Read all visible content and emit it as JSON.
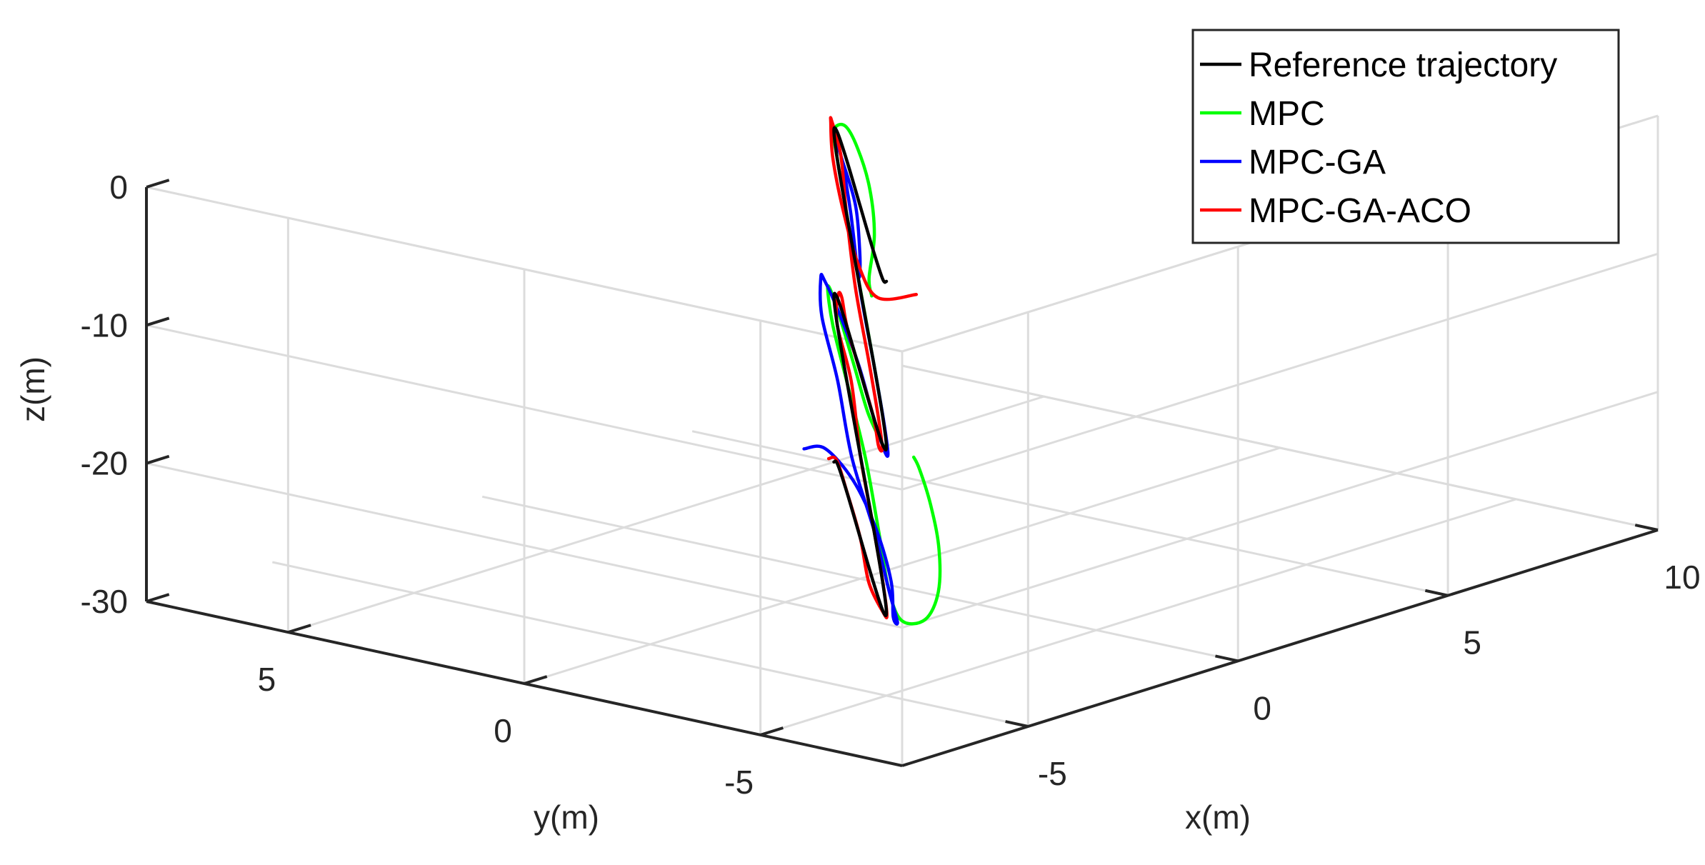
{
  "chart_data": {
    "type": "line",
    "projection": "3d",
    "grid": true,
    "legend_position": "top-right",
    "xlabel": "x(m)",
    "ylabel": "y(m)",
    "zlabel": "z(m)",
    "xlim": [
      -8,
      10
    ],
    "ylim": [
      -8,
      8
    ],
    "zlim": [
      -30,
      0
    ],
    "xticks": [
      "-5",
      "0",
      "5",
      "10"
    ],
    "yticks": [
      "5",
      "0",
      "-5"
    ],
    "zticks": [
      "0",
      "-10",
      "-20",
      "-30"
    ],
    "series": [
      {
        "name": "Reference trajectory",
        "color": "#000000",
        "x": [
          5.0,
          4.33,
          2.5,
          0.0,
          -2.5,
          -4.33,
          -5.0,
          -4.33,
          -2.5,
          0.0,
          2.5,
          4.33,
          5.0,
          4.33,
          2.5,
          0.0,
          -2.5,
          -4.33,
          -5.0,
          -4.33,
          -2.5,
          0.0,
          2.5,
          4.33,
          5.0,
          4.33,
          2.5,
          0.0,
          -2.5,
          -4.33,
          -5.0
        ],
        "y": [
          5.0,
          4.33,
          2.5,
          0.0,
          -2.5,
          -4.33,
          -5.0,
          -4.33,
          -2.5,
          0.0,
          2.5,
          4.33,
          5.0,
          4.33,
          2.5,
          0.0,
          -2.5,
          -4.33,
          -5.0,
          -4.33,
          -2.5,
          0.0,
          2.5,
          4.33,
          5.0,
          4.33,
          2.5,
          0.0,
          -2.5,
          -4.33,
          -5.0
        ],
        "z": [
          -30.0,
          -29.0,
          -28.0,
          -27.0,
          -26.0,
          -25.0,
          -24.0,
          -23.0,
          -22.0,
          -21.0,
          -20.0,
          -19.0,
          -18.0,
          -17.0,
          -16.0,
          -15.0,
          -14.0,
          -13.0,
          -12.0,
          -11.0,
          -10.0,
          -9.0,
          -8.0,
          -7.0,
          -6.0,
          -5.0,
          -4.0,
          -3.0,
          -2.0,
          -1.0,
          0.0
        ]
      },
      {
        "name": "MPC",
        "color": "#00ff00",
        "x": [
          6.0,
          4.9,
          2.8,
          0.3,
          -2.3,
          -4.3,
          -5.2,
          -4.5,
          -2.6,
          -0.1,
          2.4,
          4.3,
          5.3,
          4.5,
          2.6,
          0.1,
          -2.4,
          -4.3,
          -5.1,
          -4.4,
          -2.6,
          -0.1,
          2.4,
          4.3,
          5.0,
          4.7,
          3.2,
          0.9,
          -1.8,
          -4.4,
          -5.8
        ],
        "y": [
          4.2,
          3.1,
          1.0,
          -1.4,
          -3.7,
          -5.2,
          -5.5,
          -4.6,
          -2.7,
          -0.2,
          2.4,
          4.4,
          5.4,
          4.6,
          2.7,
          0.2,
          -2.3,
          -4.3,
          -5.1,
          -4.4,
          -2.6,
          -0.1,
          2.4,
          4.3,
          5.0,
          4.5,
          2.9,
          0.6,
          -1.9,
          -4.1,
          -5.4
        ],
        "z": [
          -30.0,
          -29.0,
          -28.0,
          -27.0,
          -26.0,
          -25.0,
          -24.0,
          -23.0,
          -22.0,
          -21.0,
          -20.0,
          -19.0,
          -18.0,
          -17.0,
          -16.0,
          -15.0,
          -14.0,
          -13.0,
          -12.0,
          -11.0,
          -10.0,
          -9.0,
          -8.0,
          -7.0,
          -6.0,
          -5.0,
          -4.0,
          -3.0,
          -2.0,
          -1.0,
          0.0
        ]
      },
      {
        "name": "MPC-GA",
        "color": "#0000ff",
        "x": [
          5.3,
          4.9,
          3.1,
          0.5,
          -2.3,
          -4.5,
          -5.3,
          -4.6,
          -2.7,
          -0.2,
          2.5,
          4.6,
          5.7,
          5.0,
          3.0,
          0.3,
          -2.5,
          -4.5,
          -5.3,
          -4.5,
          -2.5,
          0.1,
          2.7,
          4.5,
          5.1,
          4.4,
          2.5,
          0.0,
          -2.6,
          -4.4,
          -4.9
        ],
        "y": [
          5.9,
          5.1,
          2.9,
          0.1,
          -2.7,
          -4.7,
          -5.5,
          -4.7,
          -2.7,
          0.0,
          2.7,
          4.9,
          5.9,
          5.2,
          3.1,
          0.3,
          -2.5,
          -4.5,
          -5.3,
          -4.5,
          -2.5,
          0.1,
          2.6,
          4.4,
          5.1,
          4.5,
          2.6,
          0.1,
          -2.3,
          -3.9,
          -4.3
        ],
        "z": [
          -30.0,
          -29.0,
          -28.0,
          -27.0,
          -26.0,
          -25.0,
          -24.0,
          -23.0,
          -22.0,
          -21.0,
          -20.0,
          -19.0,
          -18.0,
          -17.0,
          -16.0,
          -15.0,
          -14.0,
          -13.0,
          -12.0,
          -11.0,
          -10.0,
          -9.0,
          -8.0,
          -7.0,
          -6.0,
          -5.0,
          -4.0,
          -3.0,
          -2.0,
          -1.0,
          0.0
        ]
      },
      {
        "name": "MPC-GA-ACO",
        "color": "#ff0000",
        "x": [
          5.1,
          4.5,
          2.6,
          0.0,
          -2.6,
          -4.4,
          -5.1,
          -4.4,
          -2.5,
          0.0,
          2.6,
          4.4,
          5.1,
          4.4,
          2.5,
          0.0,
          -2.5,
          -4.4,
          -5.1,
          -4.4,
          -2.5,
          0.0,
          2.6,
          4.6,
          5.4,
          4.7,
          2.5,
          -0.4,
          -3.3,
          -5.2,
          -5.3
        ],
        "y": [
          5.2,
          4.5,
          2.6,
          0.0,
          -2.5,
          -4.4,
          -5.1,
          -4.4,
          -2.5,
          0.0,
          2.5,
          4.4,
          5.0,
          4.3,
          2.5,
          0.0,
          -2.5,
          -4.3,
          -5.0,
          -4.3,
          -2.4,
          0.1,
          2.6,
          4.5,
          5.4,
          4.8,
          2.8,
          0.0,
          -2.9,
          -5.0,
          -5.9
        ],
        "z": [
          -30.0,
          -29.0,
          -28.0,
          -27.0,
          -26.0,
          -25.0,
          -24.0,
          -23.0,
          -22.0,
          -21.0,
          -20.0,
          -19.0,
          -18.0,
          -17.0,
          -16.0,
          -15.0,
          -14.0,
          -13.0,
          -12.0,
          -11.0,
          -10.0,
          -9.0,
          -8.0,
          -7.0,
          -6.0,
          -5.0,
          -4.0,
          -3.0,
          -2.0,
          -1.0,
          0.0
        ]
      }
    ]
  }
}
